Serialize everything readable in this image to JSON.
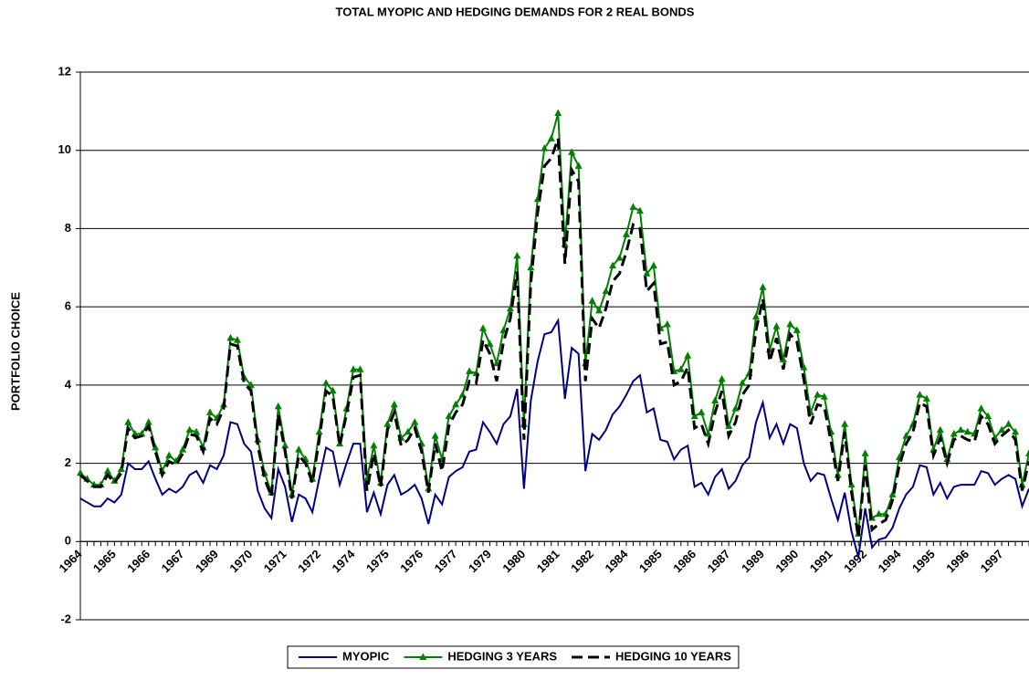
{
  "chart_data": {
    "type": "line",
    "title": "TOTAL MYOPIC AND HEDGING DEMANDS FOR 2 REAL BONDS",
    "y_label": "PORTFOLIO CHOICE",
    "categories": [
      "1964",
      null,
      null,
      null,
      null,
      "1965",
      null,
      null,
      null,
      null,
      "1966",
      null,
      null,
      null,
      null,
      "1967",
      null,
      null,
      null,
      null,
      "1969",
      null,
      null,
      null,
      null,
      "1970",
      null,
      null,
      null,
      null,
      "1971",
      null,
      null,
      null,
      null,
      "1972",
      null,
      null,
      null,
      null,
      "1974",
      null,
      null,
      null,
      null,
      "1975",
      null,
      null,
      null,
      null,
      "1976",
      null,
      null,
      null,
      null,
      "1977",
      null,
      null,
      null,
      null,
      "1979",
      null,
      null,
      null,
      null,
      "1980",
      null,
      null,
      null,
      null,
      "1981",
      null,
      null,
      null,
      null,
      "1982",
      null,
      null,
      null,
      null,
      "1984",
      null,
      null,
      null,
      null,
      "1985",
      null,
      null,
      null,
      null,
      "1986",
      null,
      null,
      null,
      null,
      "1987",
      null,
      null,
      null,
      null,
      "1989",
      null,
      null,
      null,
      null,
      "1990",
      null,
      null,
      null,
      null,
      "1991",
      null,
      null,
      null,
      null,
      "1992",
      null,
      null,
      null,
      null,
      "1994",
      null,
      null,
      null,
      null,
      "1995",
      null,
      null,
      null,
      null,
      "1996",
      null,
      null,
      null,
      null,
      "1997",
      null,
      null,
      null,
      null
    ],
    "series": [
      {
        "name": "MYOPIC",
        "color": "#000080",
        "style": "solid",
        "marker": "none",
        "values": [
          1.1,
          1.0,
          0.9,
          0.9,
          1.1,
          1.0,
          1.2,
          2.0,
          1.85,
          1.85,
          2.05,
          1.6,
          1.2,
          1.35,
          1.25,
          1.4,
          1.7,
          1.8,
          1.5,
          1.95,
          1.85,
          2.2,
          3.05,
          3.0,
          2.5,
          2.3,
          1.3,
          0.85,
          0.6,
          1.85,
          1.4,
          0.5,
          1.2,
          1.1,
          0.75,
          1.6,
          2.4,
          2.3,
          1.45,
          2.0,
          2.5,
          2.5,
          0.75,
          1.25,
          0.7,
          1.45,
          1.7,
          1.2,
          1.3,
          1.45,
          1.1,
          0.45,
          1.2,
          0.95,
          1.65,
          1.8,
          1.9,
          2.3,
          2.35,
          3.05,
          2.8,
          2.5,
          3.0,
          3.2,
          3.9,
          1.35,
          3.6,
          4.6,
          5.3,
          5.35,
          5.65,
          3.65,
          4.95,
          4.8,
          1.8,
          2.75,
          2.6,
          2.85,
          3.25,
          3.45,
          3.75,
          4.1,
          4.25,
          3.3,
          3.4,
          2.6,
          2.55,
          2.1,
          2.35,
          2.45,
          1.4,
          1.5,
          1.2,
          1.65,
          1.85,
          1.35,
          1.55,
          1.95,
          2.15,
          3.05,
          3.55,
          2.65,
          3.0,
          2.5,
          3.0,
          2.9,
          2.0,
          1.55,
          1.75,
          1.7,
          1.1,
          0.55,
          1.25,
          0.25,
          -0.4,
          0.85,
          -0.15,
          0.05,
          0.1,
          0.35,
          0.85,
          1.2,
          1.4,
          1.95,
          1.9,
          1.2,
          1.5,
          1.1,
          1.4,
          1.45,
          1.45,
          1.45,
          1.8,
          1.75,
          1.45,
          1.6,
          1.7,
          1.6,
          0.9,
          1.35
        ]
      },
      {
        "name": "HEDGING 3 YEARS",
        "color": "#008000",
        "style": "solid",
        "marker": "triangle",
        "values": [
          1.75,
          1.6,
          1.45,
          1.45,
          1.8,
          1.55,
          1.85,
          3.05,
          2.75,
          2.75,
          3.05,
          2.4,
          1.8,
          2.2,
          2.05,
          2.35,
          2.85,
          2.8,
          2.4,
          3.3,
          3.15,
          3.5,
          5.2,
          5.15,
          4.2,
          4.0,
          2.6,
          1.75,
          1.25,
          3.45,
          2.45,
          1.2,
          2.35,
          2.1,
          1.6,
          2.8,
          4.05,
          3.85,
          2.5,
          3.4,
          4.4,
          4.4,
          1.6,
          2.45,
          1.5,
          3.0,
          3.5,
          2.65,
          2.8,
          3.05,
          2.5,
          1.35,
          2.7,
          2.1,
          3.2,
          3.5,
          3.75,
          4.35,
          4.3,
          5.45,
          5.05,
          4.55,
          5.4,
          5.95,
          7.3,
          3.0,
          7.0,
          8.75,
          10.05,
          10.3,
          10.95,
          7.6,
          9.95,
          9.6,
          4.55,
          6.15,
          5.9,
          6.4,
          7.05,
          7.25,
          7.85,
          8.55,
          8.45,
          6.85,
          7.05,
          5.45,
          5.55,
          4.35,
          4.4,
          4.75,
          3.2,
          3.3,
          2.75,
          3.6,
          4.15,
          2.95,
          3.4,
          4.05,
          4.3,
          5.75,
          6.5,
          4.9,
          5.5,
          4.65,
          5.55,
          5.4,
          4.45,
          3.3,
          3.75,
          3.7,
          2.8,
          1.7,
          3.0,
          1.45,
          0.2,
          2.25,
          0.6,
          0.7,
          0.7,
          1.2,
          2.15,
          2.7,
          3.0,
          3.75,
          3.65,
          2.35,
          2.85,
          2.1,
          2.75,
          2.85,
          2.8,
          2.75,
          3.4,
          3.2,
          2.65,
          2.85,
          3.0,
          2.8,
          1.45,
          2.25
        ]
      },
      {
        "name": "HEDGING 10 YEARS",
        "color": "#000000",
        "style": "dashed",
        "marker": "none",
        "values": [
          1.7,
          1.55,
          1.4,
          1.4,
          1.7,
          1.5,
          1.75,
          2.9,
          2.65,
          2.7,
          2.95,
          2.3,
          1.7,
          2.05,
          1.95,
          2.25,
          2.75,
          2.7,
          2.3,
          3.15,
          3.0,
          3.4,
          5.05,
          5.0,
          4.05,
          3.85,
          2.45,
          1.6,
          1.15,
          3.25,
          2.3,
          1.1,
          2.2,
          2.0,
          1.5,
          2.6,
          3.85,
          3.7,
          2.45,
          3.25,
          4.2,
          4.25,
          1.3,
          2.25,
          1.4,
          2.85,
          3.3,
          2.45,
          2.6,
          2.9,
          2.3,
          1.25,
          2.5,
          1.8,
          2.95,
          3.3,
          3.5,
          4.1,
          4.05,
          5.15,
          4.8,
          4.1,
          5.1,
          5.7,
          6.9,
          2.6,
          6.6,
          8.4,
          9.6,
          9.8,
          10.3,
          7.1,
          9.5,
          9.2,
          4.1,
          5.7,
          5.45,
          5.95,
          6.65,
          6.85,
          7.4,
          8.1,
          8.0,
          6.4,
          6.6,
          5.05,
          5.1,
          4.0,
          4.1,
          4.45,
          2.9,
          3.0,
          2.5,
          3.3,
          3.85,
          2.7,
          3.05,
          3.75,
          4.0,
          5.4,
          6.2,
          4.6,
          5.2,
          4.4,
          5.3,
          5.1,
          4.15,
          3.0,
          3.5,
          3.45,
          2.55,
          1.55,
          2.8,
          1.25,
          0.1,
          1.95,
          0.3,
          0.45,
          0.55,
          1.05,
          1.95,
          2.5,
          2.8,
          3.55,
          3.45,
          2.2,
          2.65,
          2.0,
          2.6,
          2.7,
          2.6,
          2.55,
          3.2,
          3.0,
          2.5,
          2.7,
          2.85,
          2.6,
          1.3,
          2.05
        ]
      }
    ],
    "ylim": [
      -2,
      12
    ],
    "yticks": [
      -2,
      0,
      2,
      4,
      6,
      8,
      10,
      12
    ],
    "grid": true,
    "legend": "bottom"
  }
}
